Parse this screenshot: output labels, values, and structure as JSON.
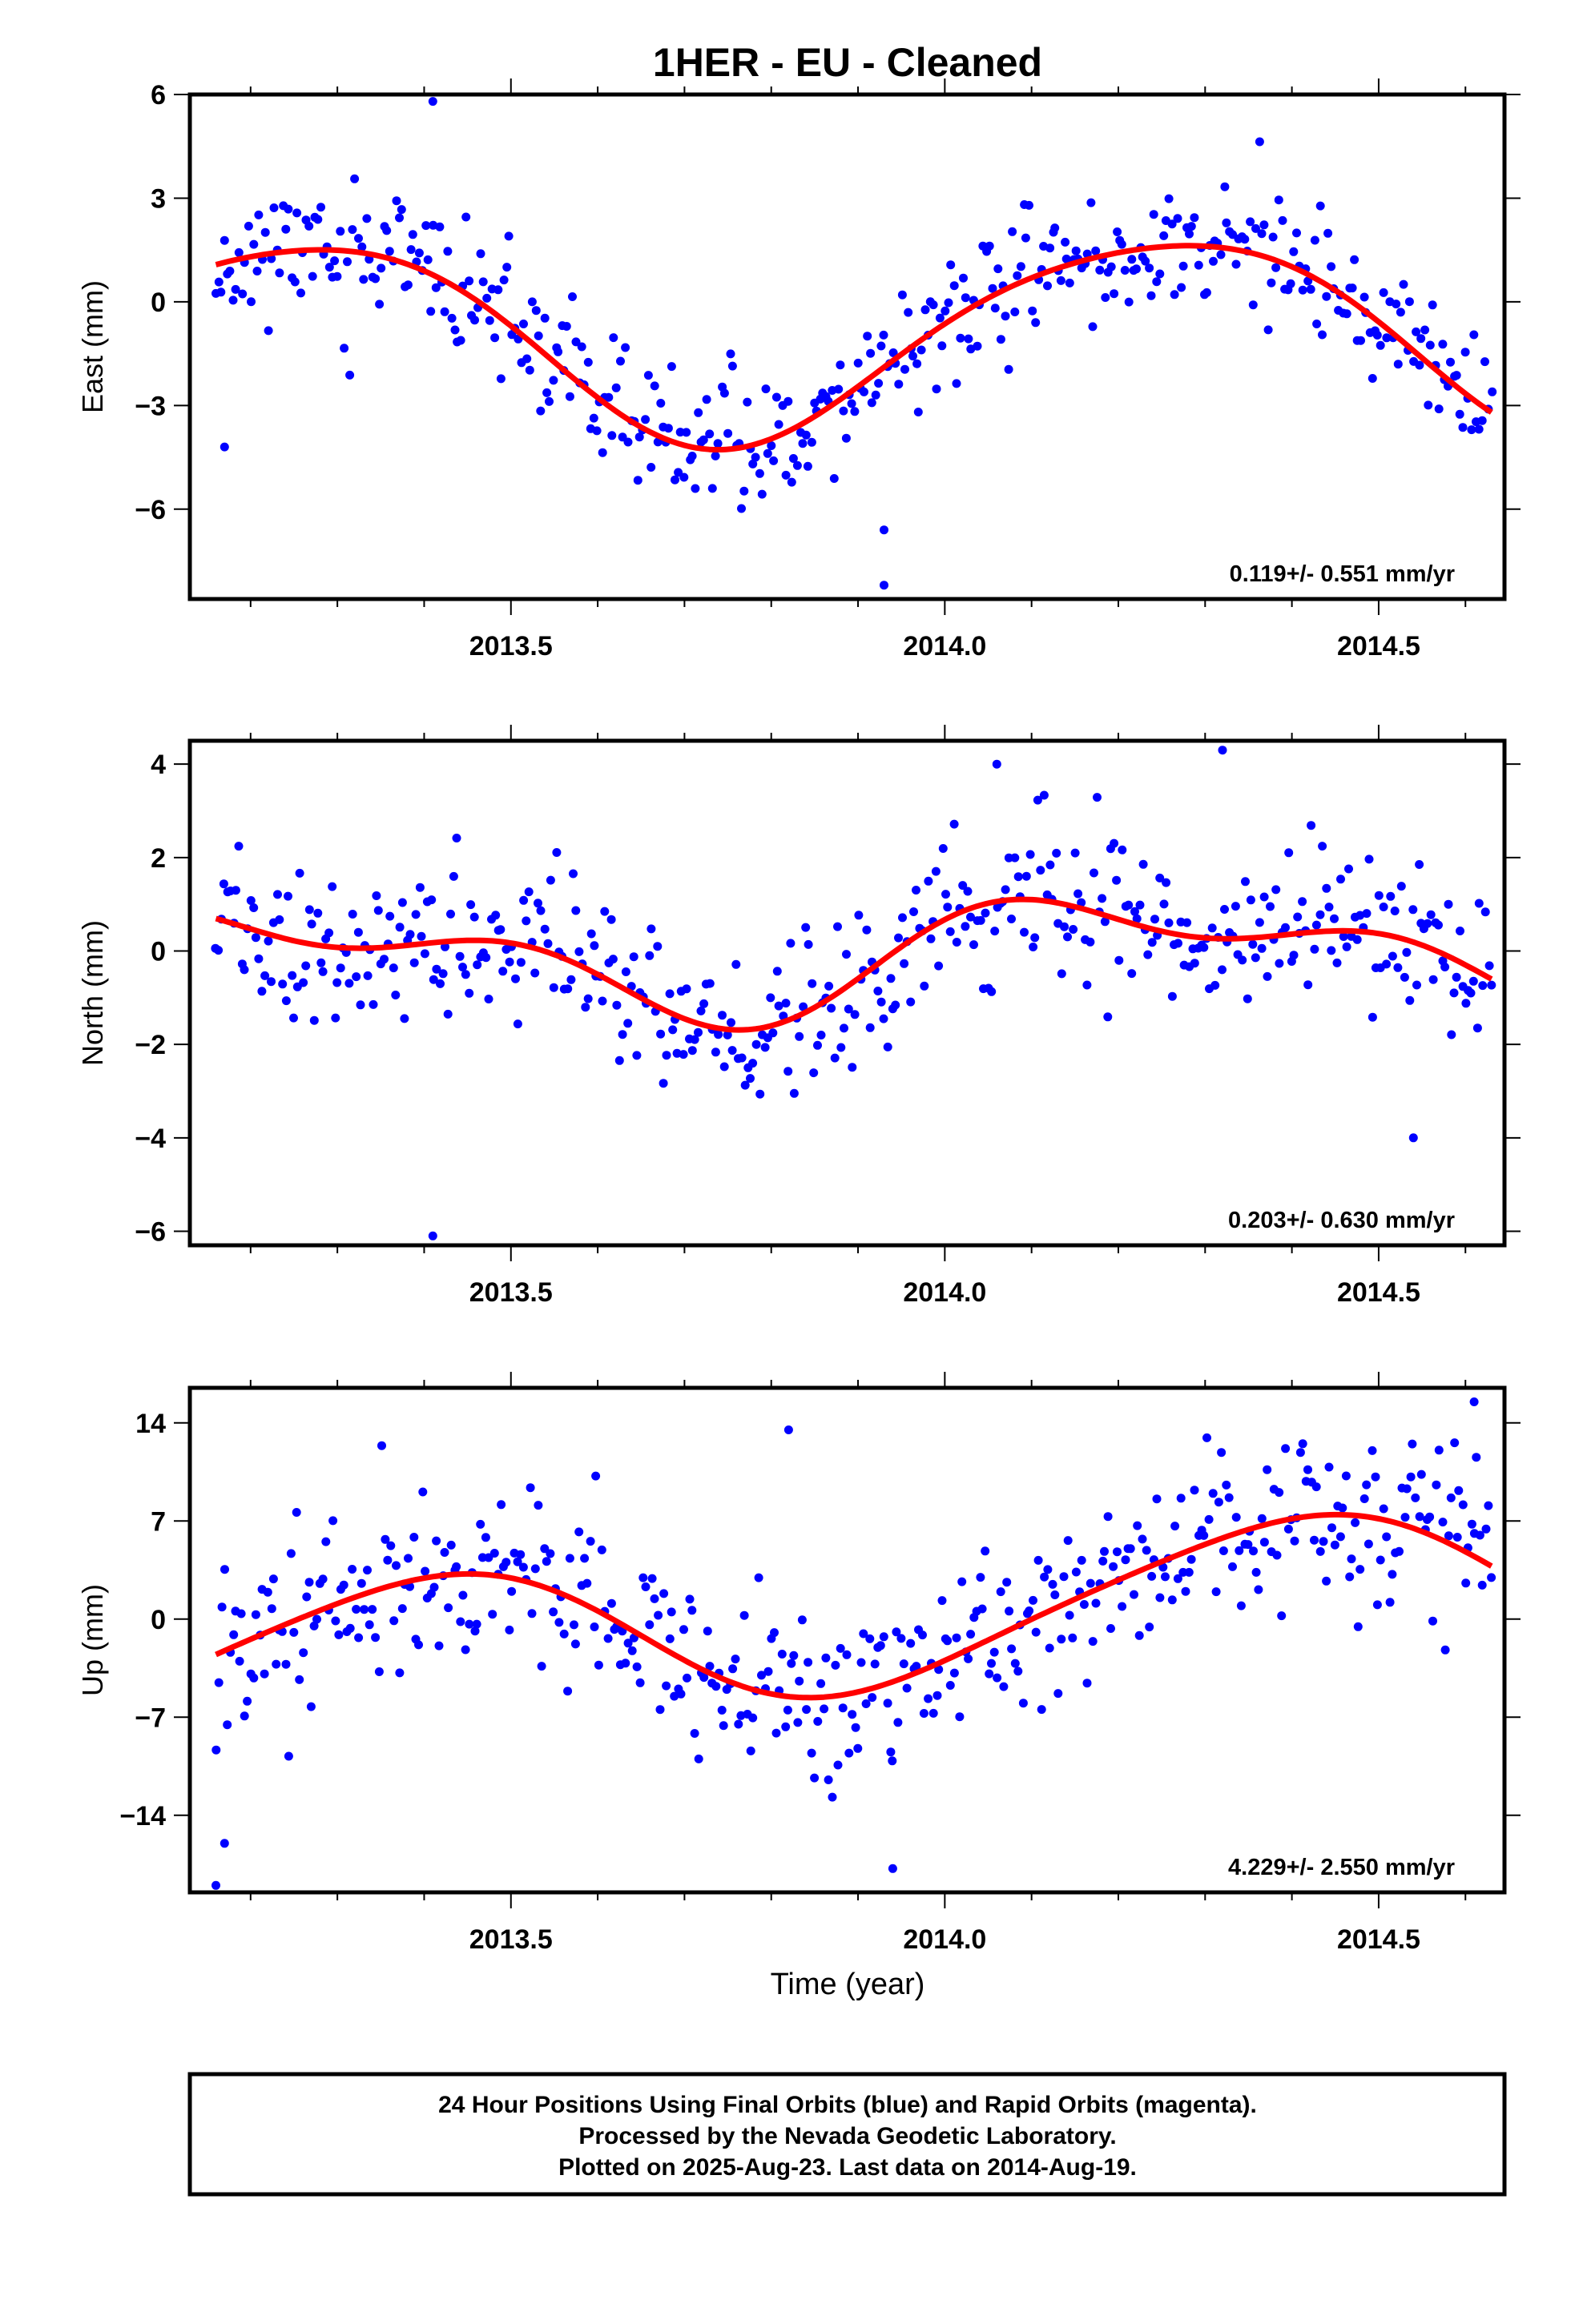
{
  "title": "1HER  - EU - Cleaned",
  "xlabel": "Time (year)",
  "footer": [
    "24 Hour Positions Using Final Orbits (blue) and Rapid Orbits (magenta).",
    "Processed by the Nevada Geodetic Laboratory.",
    "Plotted on 2025-Aug-23. Last data on 2014-Aug-19."
  ],
  "colors": {
    "final_orbits": "#0000ff",
    "rapid_orbits": "#ff00ff",
    "fit": "#ff0000"
  },
  "chart_data": [
    {
      "type": "scatter",
      "ylabel": "East (mm)",
      "rate": "0.119+/- 0.551 mm/yr",
      "xlim": [
        2013.13,
        2014.645
      ],
      "ylim": [
        -8.6,
        6.0
      ],
      "xticks": [
        2013.5,
        2014.0,
        2014.5
      ],
      "xtick_labels": [
        "2013.5",
        "2014.0",
        "2014.5"
      ],
      "yticks": [
        6,
        3,
        0,
        -3,
        -6
      ],
      "ytick_labels": [
        "6",
        "3",
        "0",
        "−3",
        "−6"
      ],
      "x_start": 2013.16,
      "x_end": 2014.63,
      "fit": {
        "offset": -1.0,
        "trend": 0.119,
        "annual": [
          0.0,
          2.9
        ],
        "semiannual": [
          0.35,
          -0.15
        ]
      },
      "scatter_sd": 0.95,
      "seed": 11,
      "outliers": [
        [
          2013.41,
          5.8
        ],
        [
          2013.93,
          -8.2
        ],
        [
          2013.17,
          -4.2
        ],
        [
          2013.93,
          -6.6
        ]
      ]
    },
    {
      "type": "scatter",
      "ylabel": "North (mm)",
      "rate": "0.203+/- 0.630 mm/yr",
      "xlim": [
        2013.13,
        2014.645
      ],
      "ylim": [
        -6.3,
        4.5
      ],
      "xticks": [
        2013.5,
        2014.0,
        2014.5
      ],
      "xtick_labels": [
        "2013.5",
        "2014.0",
        "2014.5"
      ],
      "yticks": [
        4,
        2,
        0,
        -2,
        -4,
        -6
      ],
      "ytick_labels": [
        "4",
        "2",
        "0",
        "−2",
        "−4",
        "−6"
      ],
      "x_start": 2013.16,
      "x_end": 2014.63,
      "fit": {
        "offset": -0.1,
        "trend": 0.203,
        "annual": [
          0.2,
          1.0
        ],
        "semiannual": [
          0.55,
          0.25
        ]
      },
      "scatter_sd": 0.85,
      "seed": 29,
      "outliers": [
        [
          2013.41,
          -6.1
        ],
        [
          2014.06,
          4.0
        ],
        [
          2014.32,
          4.3
        ],
        [
          2014.54,
          -4.0
        ]
      ]
    },
    {
      "type": "scatter",
      "ylabel": "Up (mm)",
      "rate": "4.229+/- 2.550 mm/yr",
      "xlim": [
        2013.13,
        2014.645
      ],
      "ylim": [
        -19.5,
        16.5
      ],
      "xticks": [
        2013.5,
        2014.0,
        2014.5
      ],
      "xtick_labels": [
        "2013.5",
        "2014.0",
        "2014.5"
      ],
      "yticks": [
        14,
        7,
        0,
        -7,
        -14
      ],
      "ytick_labels": [
        "14",
        "7",
        "0",
        "−7",
        "−14"
      ],
      "x_start": 2013.16,
      "x_end": 2014.63,
      "fit": {
        "offset": 0.0,
        "trend": 4.229,
        "annual": [
          -4.0,
          3.2
        ],
        "semiannual": [
          0.6,
          0.3
        ]
      },
      "scatter_sd": 3.2,
      "seed": 47,
      "outliers": [
        [
          2013.16,
          -19.0
        ],
        [
          2013.17,
          -16.0
        ],
        [
          2013.94,
          -17.8
        ],
        [
          2014.61,
          15.5
        ],
        [
          2013.82,
          13.5
        ]
      ]
    }
  ]
}
